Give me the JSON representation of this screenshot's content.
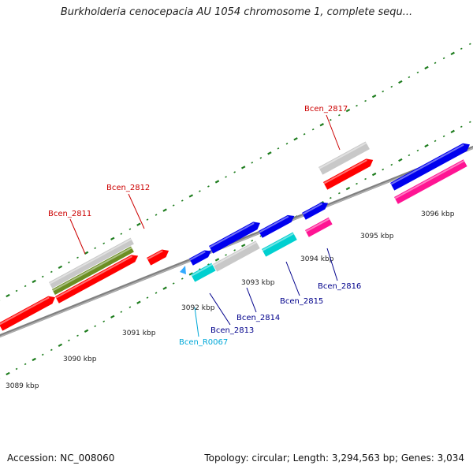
{
  "title": "Burkholderia cenocepacia AU 1054 chromosome 1, complete sequ...",
  "accession": "Accession: NC_008060",
  "info": "Topology: circular; Length: 3,294,563 bp; Genes: 3,034",
  "colors": {
    "red": "#ff0000",
    "gray": "#c8c8c8",
    "olive": "#6b8e23",
    "blue": "#0000ee",
    "cyan": "#00d0d0",
    "magenta": "#ff1493",
    "backbone": "#808080",
    "tick": "#1e7d1e",
    "label_red": "#cc0000",
    "label_blue": "#00008b",
    "label_cyan": "#00a8d8"
  },
  "scale_labels": [
    "3089 kbp",
    "3090 kbp",
    "3091 kbp",
    "3092 kbp",
    "3093 kbp",
    "3094 kbp",
    "3095 kbp",
    "3096 kbp"
  ],
  "gene_labels": [
    {
      "text": "Bcen_2811",
      "color": "label_red"
    },
    {
      "text": "Bcen_2812",
      "color": "label_red"
    },
    {
      "text": "Bcen_2817",
      "color": "label_red"
    },
    {
      "text": "Bcen_2813",
      "color": "label_blue"
    },
    {
      "text": "Bcen_2814",
      "color": "label_blue"
    },
    {
      "text": "Bcen_2815",
      "color": "label_blue"
    },
    {
      "text": "Bcen_2816",
      "color": "label_blue"
    },
    {
      "text": "Bcen_R0067",
      "color": "label_cyan"
    }
  ]
}
